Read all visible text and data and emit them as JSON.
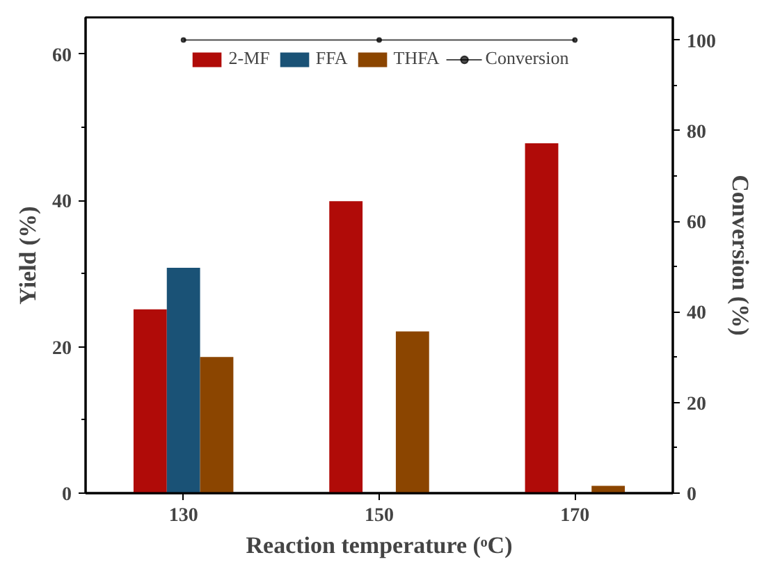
{
  "chart_data": {
    "type": "bar",
    "xlabel": "Reaction temperature (ᵒC)",
    "ylabel": "Yield (%)",
    "y2label": "Conversion (%)",
    "x": [
      130,
      150,
      170
    ],
    "xlim": [
      120,
      180
    ],
    "xticks": [
      130,
      150,
      170
    ],
    "ylim": [
      0,
      65
    ],
    "yticks": [
      0,
      20,
      40,
      60
    ],
    "y2lim": [
      0,
      105
    ],
    "y2ticks": [
      0,
      20,
      40,
      60,
      80,
      100
    ],
    "series": [
      {
        "name": "2-MF",
        "color": "#b00b08",
        "values": [
          25.1,
          39.9,
          47.8
        ]
      },
      {
        "name": "FFA",
        "color": "#1a5276",
        "values": [
          30.8,
          null,
          null
        ]
      },
      {
        "name": "THFA",
        "color": "#8b4500",
        "values": [
          18.6,
          22.1,
          1.0
        ]
      },
      {
        "name": "Conversion",
        "type": "line",
        "axis": "y2",
        "color": "#000000",
        "values": [
          100,
          100,
          100
        ],
        "marker": "circle"
      }
    ],
    "legend": "top",
    "grid": false
  }
}
